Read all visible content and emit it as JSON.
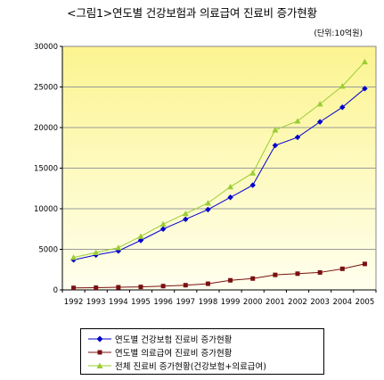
{
  "chart_data": {
    "type": "line",
    "title": "<그림1>연도별 건강보험과 의료급여 진료비 증가현황",
    "unit_note": "(단위:10억원)",
    "xlabel": "",
    "ylabel": "",
    "x": [
      "1992",
      "1993",
      "1994",
      "1995",
      "1996",
      "1997",
      "1998",
      "1999",
      "2000",
      "2001",
      "2002",
      "2003",
      "2004",
      "2005"
    ],
    "ylim": [
      0,
      30000
    ],
    "yticks": [
      "0",
      "5000",
      "10000",
      "15000",
      "20000",
      "25000",
      "30000"
    ],
    "grid": true,
    "legend_position": "bottom",
    "series": [
      {
        "name": "연도별 건강보험 진료비 증가현황",
        "color": "#0000cc",
        "marker": "diamond",
        "values": [
          3700,
          4300,
          4800,
          6100,
          7500,
          8700,
          9900,
          11400,
          12900,
          17800,
          18800,
          20700,
          22500,
          24800
        ]
      },
      {
        "name": "연도별 의료급여 진료비 증가현황",
        "color": "#7a1010",
        "marker": "square",
        "values": [
          250,
          270,
          330,
          370,
          470,
          580,
          760,
          1180,
          1400,
          1850,
          2000,
          2150,
          2600,
          3200
        ]
      },
      {
        "name": "전체 진료비 증가현황(건강보험+의료급여)",
        "color": "#9acd32",
        "marker": "triangle",
        "values": [
          4000,
          4600,
          5200,
          6600,
          8100,
          9400,
          10700,
          12700,
          14400,
          19700,
          20800,
          22900,
          25100,
          28100
        ]
      }
    ]
  }
}
